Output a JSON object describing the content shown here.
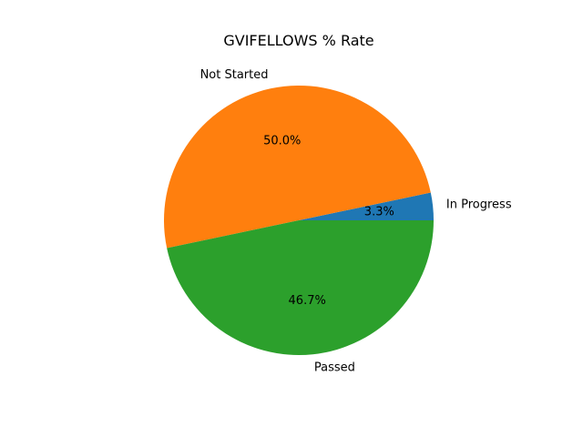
{
  "chart_data": {
    "type": "pie",
    "title": "GVIFELLOWS % Rate",
    "slices": [
      {
        "label": "In Progress",
        "value": 3.3,
        "pct_label": "3.3%",
        "color": "#1f77b4"
      },
      {
        "label": "Not Started",
        "value": 50.0,
        "pct_label": "50.0%",
        "color": "#ff7f0e"
      },
      {
        "label": "Passed",
        "value": 46.7,
        "pct_label": "46.7%",
        "color": "#2ca02c"
      }
    ],
    "start_angle_deg": 0,
    "direction": "counterclockwise"
  }
}
